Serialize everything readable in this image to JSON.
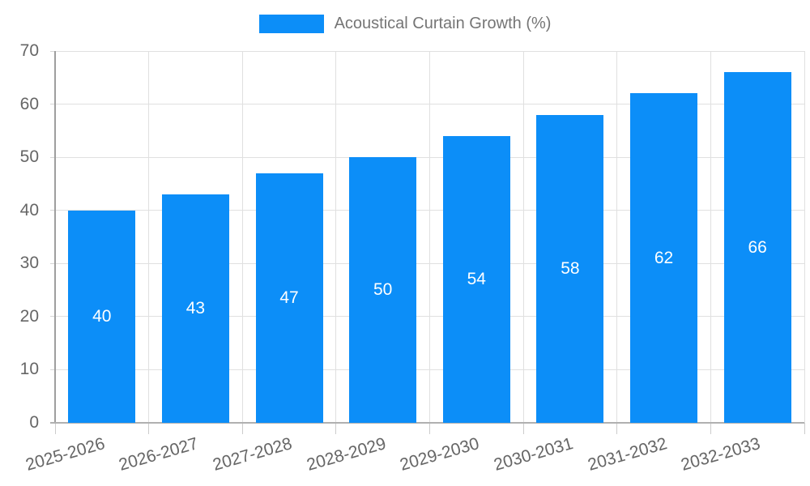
{
  "chart_data": {
    "type": "bar",
    "title": "",
    "legend": {
      "label": "Acoustical Curtain Growth (%)",
      "position": "top"
    },
    "categories": [
      "2025-2026",
      "2026-2027",
      "2027-2028",
      "2028-2029",
      "2029-2030",
      "2030-2031",
      "2031-2032",
      "2032-2033"
    ],
    "series": [
      {
        "name": "Acoustical Curtain Growth (%)",
        "values": [
          40,
          43,
          47,
          50,
          54,
          58,
          62,
          66
        ]
      }
    ],
    "value_labels": [
      "40",
      "43",
      "47",
      "50",
      "54",
      "58",
      "62",
      "66"
    ],
    "y_ticks": [
      "0",
      "10",
      "20",
      "30",
      "40",
      "50",
      "60",
      "70"
    ],
    "ylim": [
      0,
      70
    ],
    "xlabel": "",
    "ylabel": "",
    "grid": true,
    "colors": {
      "bar": "#0c8ef8",
      "value_label": "#ffffff",
      "axis_text": "#666666",
      "legend_text": "#757575",
      "gridline": "#e0e0e0"
    }
  }
}
